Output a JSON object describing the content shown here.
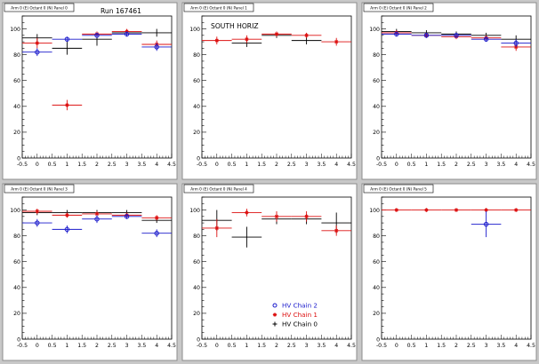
{
  "run_label": "Run 167461",
  "legend": [
    {
      "name": "HV Chain 2",
      "color": "#1a1acc",
      "marker": "circle"
    },
    {
      "name": "HV Chain 1",
      "color": "#dd1111",
      "marker": "star"
    },
    {
      "name": "HV Chain 0",
      "color": "#000000",
      "marker": "plus"
    }
  ],
  "chart_data": [
    {
      "type": "scatter",
      "title": "Arm 0 (E) Octant 0 (N) Panel 0",
      "annotation": "Run 167461",
      "xlim": [
        -0.5,
        4.5
      ],
      "ylim": [
        0,
        110
      ],
      "xticks": [
        -0.5,
        0,
        0.5,
        1,
        1.5,
        2,
        2.5,
        3,
        3.5,
        4,
        4.5
      ],
      "yticks": [
        0,
        20,
        40,
        60,
        80,
        100
      ],
      "series": [
        {
          "key": "chain2",
          "color": "#1a1acc",
          "marker": "circle",
          "points": [
            {
              "x": 0,
              "y": 82,
              "xerr": 0.5,
              "yerr": 3
            },
            {
              "x": 1,
              "y": 92,
              "xerr": 0.5,
              "yerr": 2
            },
            {
              "x": 2,
              "y": 95,
              "xerr": 0.5,
              "yerr": 2
            },
            {
              "x": 3,
              "y": 96,
              "xerr": 0.5,
              "yerr": 2
            },
            {
              "x": 4,
              "y": 86,
              "xerr": 0.5,
              "yerr": 3
            }
          ]
        },
        {
          "key": "chain1",
          "color": "#dd1111",
          "marker": "star",
          "points": [
            {
              "x": 0,
              "y": 89,
              "xerr": 0.5,
              "yerr": 4
            },
            {
              "x": 1,
              "y": 41,
              "xerr": 0.5,
              "yerr": 4
            },
            {
              "x": 2,
              "y": 96,
              "xerr": 0.5,
              "yerr": 2
            },
            {
              "x": 3,
              "y": 98,
              "xerr": 0.5,
              "yerr": 2
            },
            {
              "x": 4,
              "y": 88,
              "xerr": 0.5,
              "yerr": 3
            }
          ]
        },
        {
          "key": "chain0",
          "color": "#000000",
          "marker": "plus",
          "points": [
            {
              "x": 0,
              "y": 93,
              "xerr": 0.5,
              "yerr": 3
            },
            {
              "x": 1,
              "y": 85,
              "xerr": 0.5,
              "yerr": 5
            },
            {
              "x": 2,
              "y": 92,
              "xerr": 0.5,
              "yerr": 5
            },
            {
              "x": 3,
              "y": 97,
              "xerr": 0.5,
              "yerr": 2
            },
            {
              "x": 4,
              "y": 97,
              "xerr": 0.5,
              "yerr": 3
            }
          ]
        }
      ]
    },
    {
      "type": "scatter",
      "title": "Arm 0 (E) Octant 0 (N) Panel 1",
      "annotation": "SOUTH HORIZ",
      "xlim": [
        -0.5,
        4.5
      ],
      "ylim": [
        0,
        110
      ],
      "xticks": [
        -0.5,
        0,
        0.5,
        1,
        1.5,
        2,
        2.5,
        3,
        3.5,
        4,
        4.5
      ],
      "yticks": [
        0,
        20,
        40,
        60,
        80,
        100
      ],
      "series": [
        {
          "key": "chain1",
          "color": "#dd1111",
          "marker": "star",
          "points": [
            {
              "x": 0,
              "y": 91,
              "xerr": 0.5,
              "yerr": 3
            },
            {
              "x": 1,
              "y": 92,
              "xerr": 0.5,
              "yerr": 3
            },
            {
              "x": 2,
              "y": 96,
              "xerr": 0.5,
              "yerr": 2
            },
            {
              "x": 3,
              "y": 95,
              "xerr": 0.5,
              "yerr": 2
            },
            {
              "x": 4,
              "y": 90,
              "xerr": 0.5,
              "yerr": 3
            }
          ]
        },
        {
          "key": "chain0",
          "color": "#000000",
          "marker": "plus",
          "points": [
            {
              "x": 1,
              "y": 89,
              "xerr": 0.5,
              "yerr": 3
            },
            {
              "x": 2,
              "y": 95,
              "xerr": 0.5,
              "yerr": 2
            },
            {
              "x": 3,
              "y": 91,
              "xerr": 0.5,
              "yerr": 3
            }
          ]
        }
      ]
    },
    {
      "type": "scatter",
      "title": "Arm 0 (E) Octant 0 (N) Panel 2",
      "annotation": "",
      "xlim": [
        -0.5,
        4.5
      ],
      "ylim": [
        0,
        110
      ],
      "xticks": [
        -0.5,
        0,
        0.5,
        1,
        1.5,
        2,
        2.5,
        3,
        3.5,
        4,
        4.5
      ],
      "yticks": [
        0,
        20,
        40,
        60,
        80,
        100
      ],
      "series": [
        {
          "key": "chain2",
          "color": "#1a1acc",
          "marker": "circle",
          "points": [
            {
              "x": 0,
              "y": 96,
              "xerr": 0.5,
              "yerr": 2
            },
            {
              "x": 1,
              "y": 95,
              "xerr": 0.5,
              "yerr": 2
            },
            {
              "x": 2,
              "y": 95,
              "xerr": 0.5,
              "yerr": 2
            },
            {
              "x": 3,
              "y": 92,
              "xerr": 0.5,
              "yerr": 2
            },
            {
              "x": 4,
              "y": 89,
              "xerr": 0.5,
              "yerr": 3
            }
          ]
        },
        {
          "key": "chain1",
          "color": "#dd1111",
          "marker": "star",
          "points": [
            {
              "x": 0,
              "y": 97,
              "xerr": 0.5,
              "yerr": 2
            },
            {
              "x": 1,
              "y": 95,
              "xerr": 0.5,
              "yerr": 2
            },
            {
              "x": 2,
              "y": 94,
              "xerr": 0.5,
              "yerr": 2
            },
            {
              "x": 3,
              "y": 93,
              "xerr": 0.5,
              "yerr": 2
            },
            {
              "x": 4,
              "y": 86,
              "xerr": 0.5,
              "yerr": 3
            }
          ]
        },
        {
          "key": "chain0",
          "color": "#000000",
          "marker": "plus",
          "points": [
            {
              "x": 0,
              "y": 98,
              "xerr": 0.5,
              "yerr": 2
            },
            {
              "x": 1,
              "y": 97,
              "xerr": 0.5,
              "yerr": 2
            },
            {
              "x": 2,
              "y": 96,
              "xerr": 0.5,
              "yerr": 2
            },
            {
              "x": 3,
              "y": 95,
              "xerr": 0.5,
              "yerr": 2
            },
            {
              "x": 4,
              "y": 92,
              "xerr": 0.5,
              "yerr": 3
            }
          ]
        }
      ]
    },
    {
      "type": "scatter",
      "title": "Arm 0 (E) Octant 0 (N) Panel 3",
      "annotation": "",
      "xlim": [
        -0.5,
        4.5
      ],
      "ylim": [
        0,
        110
      ],
      "xticks": [
        -0.5,
        0,
        0.5,
        1,
        1.5,
        2,
        2.5,
        3,
        3.5,
        4,
        4.5
      ],
      "yticks": [
        0,
        20,
        40,
        60,
        80,
        100
      ],
      "series": [
        {
          "key": "chain2",
          "color": "#1a1acc",
          "marker": "circle",
          "points": [
            {
              "x": 0,
              "y": 90,
              "xerr": 0.5,
              "yerr": 3
            },
            {
              "x": 1,
              "y": 85,
              "xerr": 0.5,
              "yerr": 3
            },
            {
              "x": 2,
              "y": 93,
              "xerr": 0.5,
              "yerr": 3
            },
            {
              "x": 3,
              "y": 95,
              "xerr": 0.5,
              "yerr": 2
            },
            {
              "x": 4,
              "y": 82,
              "xerr": 0.5,
              "yerr": 3
            }
          ]
        },
        {
          "key": "chain1",
          "color": "#dd1111",
          "marker": "star",
          "points": [
            {
              "x": 0,
              "y": 99,
              "xerr": 0.5,
              "yerr": 2
            },
            {
              "x": 1,
              "y": 96,
              "xerr": 0.5,
              "yerr": 2
            },
            {
              "x": 2,
              "y": 97,
              "xerr": 0.5,
              "yerr": 2
            },
            {
              "x": 3,
              "y": 96,
              "xerr": 0.5,
              "yerr": 2
            },
            {
              "x": 4,
              "y": 94,
              "xerr": 0.5,
              "yerr": 2
            }
          ]
        },
        {
          "key": "chain0",
          "color": "#000000",
          "marker": "plus",
          "points": [
            {
              "x": 0,
              "y": 98,
              "xerr": 0.5,
              "yerr": 2
            },
            {
              "x": 1,
              "y": 98,
              "xerr": 0.5,
              "yerr": 2
            },
            {
              "x": 2,
              "y": 98,
              "xerr": 0.5,
              "yerr": 2
            },
            {
              "x": 3,
              "y": 98,
              "xerr": 0.5,
              "yerr": 2
            },
            {
              "x": 4,
              "y": 92,
              "xerr": 0.5,
              "yerr": 2
            }
          ]
        }
      ]
    },
    {
      "type": "scatter",
      "title": "Arm 0 (E) Octant 0 (N) Panel 4",
      "annotation": "",
      "xlim": [
        -0.5,
        4.5
      ],
      "ylim": [
        0,
        110
      ],
      "xticks": [
        -0.5,
        0,
        0.5,
        1,
        1.5,
        2,
        2.5,
        3,
        3.5,
        4,
        4.5
      ],
      "yticks": [
        0,
        20,
        40,
        60,
        80,
        100
      ],
      "series": [
        {
          "key": "chain1",
          "color": "#dd1111",
          "marker": "star",
          "points": [
            {
              "x": 0,
              "y": 86,
              "xerr": 0.5,
              "yerr": 7
            },
            {
              "x": 1,
              "y": 98,
              "xerr": 0.5,
              "yerr": 3
            },
            {
              "x": 2,
              "y": 95,
              "xerr": 0.5,
              "yerr": 4
            },
            {
              "x": 3,
              "y": 95,
              "xerr": 0.5,
              "yerr": 4
            },
            {
              "x": 4,
              "y": 84,
              "xerr": 0.5,
              "yerr": 4
            }
          ]
        },
        {
          "key": "chain0",
          "color": "#000000",
          "marker": "plus",
          "points": [
            {
              "x": 0,
              "y": 92,
              "xerr": 0.5,
              "yerr": 8
            },
            {
              "x": 1,
              "y": 79,
              "xerr": 0.5,
              "yerr": 8
            },
            {
              "x": 2,
              "y": 93,
              "xerr": 0.5,
              "yerr": 4
            },
            {
              "x": 3,
              "y": 93,
              "xerr": 0.5,
              "yerr": 4
            },
            {
              "x": 4,
              "y": 90,
              "xerr": 0.5,
              "yerr": 8
            }
          ]
        }
      ],
      "legend": "bottom-right"
    },
    {
      "type": "scatter",
      "title": "Arm 0 (E) Octant 0 (N) Panel 5",
      "annotation": "",
      "xlim": [
        -0.5,
        4.5
      ],
      "ylim": [
        0,
        110
      ],
      "xticks": [
        -0.5,
        0,
        0.5,
        1,
        1.5,
        2,
        2.5,
        3,
        3.5,
        4,
        4.5
      ],
      "yticks": [
        0,
        20,
        40,
        60,
        80,
        100
      ],
      "series": [
        {
          "key": "chain2",
          "color": "#1a1acc",
          "marker": "circle",
          "points": [
            {
              "x": 3,
              "y": 89,
              "xerr": 0.5,
              "yerr": 10
            }
          ]
        },
        {
          "key": "chain1",
          "color": "#dd1111",
          "marker": "star",
          "points": [
            {
              "x": 0,
              "y": 100,
              "xerr": 0.5,
              "yerr": 1
            },
            {
              "x": 1,
              "y": 100,
              "xerr": 0.5,
              "yerr": 1
            },
            {
              "x": 2,
              "y": 100,
              "xerr": 0.5,
              "yerr": 1
            },
            {
              "x": 3,
              "y": 100,
              "xerr": 0.5,
              "yerr": 1
            },
            {
              "x": 4,
              "y": 100,
              "xerr": 0.5,
              "yerr": 1
            }
          ]
        }
      ]
    }
  ]
}
